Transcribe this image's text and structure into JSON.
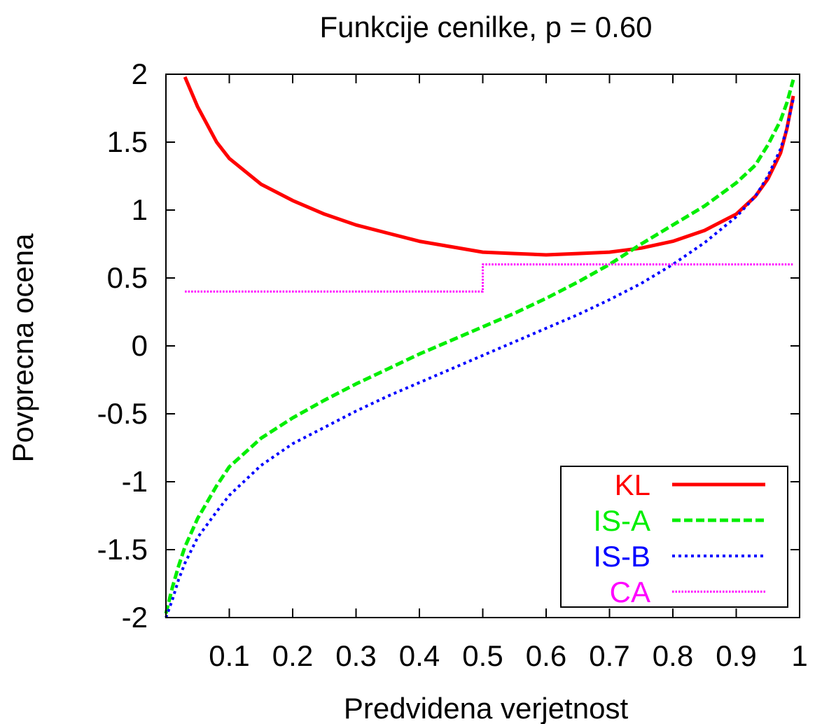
{
  "chart_data": {
    "type": "line",
    "title": "Funkcije cenilke, p = 0.60",
    "xlabel": "Predvidena verjetnost",
    "ylabel": "Povprecna ocena",
    "xlim": [
      0.0,
      1.0
    ],
    "ylim": [
      -2,
      2
    ],
    "x_ticks": [
      "0.1",
      "0.2",
      "0.3",
      "0.4",
      "0.5",
      "0.6",
      "0.7",
      "0.8",
      "0.9",
      "1"
    ],
    "y_ticks": [
      "2",
      "1.5",
      "1",
      "0.5",
      "0",
      "-0.5",
      "-1",
      "-1.5",
      "-2"
    ],
    "grid": false,
    "legend_position": "bottom-right",
    "series": [
      {
        "name": "KL",
        "color": "#ff0000",
        "style": "solid",
        "x": [
          0.03,
          0.05,
          0.08,
          0.1,
          0.15,
          0.2,
          0.25,
          0.3,
          0.35,
          0.4,
          0.45,
          0.5,
          0.55,
          0.6,
          0.65,
          0.7,
          0.75,
          0.8,
          0.85,
          0.9,
          0.93,
          0.95,
          0.97,
          0.98,
          0.99
        ],
        "y": [
          1.98,
          1.76,
          1.5,
          1.38,
          1.19,
          1.07,
          0.97,
          0.89,
          0.83,
          0.77,
          0.73,
          0.69,
          0.68,
          0.67,
          0.68,
          0.69,
          0.72,
          0.77,
          0.85,
          0.97,
          1.1,
          1.23,
          1.42,
          1.6,
          1.84
        ]
      },
      {
        "name": "IS-A",
        "color": "#00ee00",
        "style": "dashed",
        "x": [
          0.0,
          0.01,
          0.02,
          0.03,
          0.05,
          0.08,
          0.1,
          0.15,
          0.2,
          0.25,
          0.3,
          0.35,
          0.4,
          0.45,
          0.5,
          0.55,
          0.6,
          0.65,
          0.7,
          0.75,
          0.8,
          0.85,
          0.9,
          0.93,
          0.95,
          0.97,
          0.98,
          0.99
        ],
        "y": [
          -1.97,
          -1.78,
          -1.62,
          -1.48,
          -1.27,
          -1.03,
          -0.89,
          -0.68,
          -0.53,
          -0.4,
          -0.28,
          -0.17,
          -0.06,
          0.04,
          0.14,
          0.24,
          0.35,
          0.47,
          0.6,
          0.75,
          0.89,
          1.03,
          1.2,
          1.33,
          1.48,
          1.66,
          1.79,
          1.96
        ]
      },
      {
        "name": "IS-B",
        "color": "#0000ff",
        "style": "dotted",
        "x": [
          0.0,
          0.01,
          0.02,
          0.03,
          0.05,
          0.08,
          0.1,
          0.15,
          0.2,
          0.25,
          0.3,
          0.35,
          0.4,
          0.45,
          0.5,
          0.55,
          0.6,
          0.65,
          0.7,
          0.75,
          0.8,
          0.85,
          0.9,
          0.93,
          0.95,
          0.97,
          0.98,
          0.99
        ],
        "y": [
          -2.0,
          -1.87,
          -1.72,
          -1.6,
          -1.41,
          -1.22,
          -1.1,
          -0.88,
          -0.72,
          -0.6,
          -0.48,
          -0.37,
          -0.27,
          -0.17,
          -0.07,
          0.03,
          0.13,
          0.23,
          0.34,
          0.46,
          0.6,
          0.76,
          0.95,
          1.1,
          1.25,
          1.45,
          1.6,
          1.82
        ]
      },
      {
        "name": "CA",
        "color": "#ff00ff",
        "style": "fine-dotted",
        "x": [
          0.03,
          0.5,
          0.5,
          0.99
        ],
        "y": [
          0.4,
          0.4,
          0.6,
          0.6
        ]
      }
    ]
  }
}
